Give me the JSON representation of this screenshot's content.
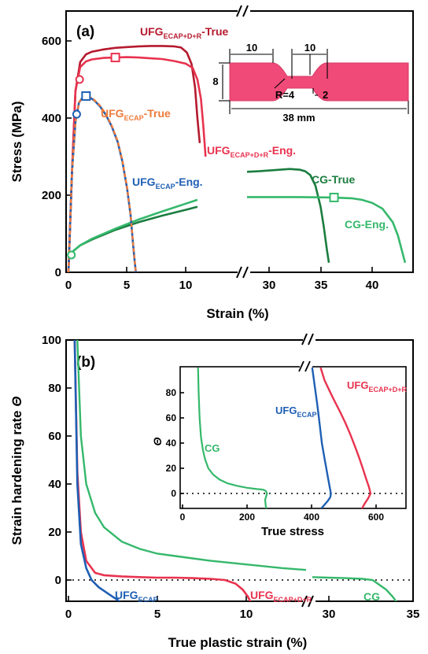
{
  "chart_data": [
    {
      "type": "line",
      "panel": "(a)",
      "xlabel": "Strain (%)",
      "ylabel": "Stress (MPa)",
      "ylim": [
        0,
        650
      ],
      "x_segments": [
        {
          "range": [
            0,
            11
          ],
          "ticks": [
            "0",
            "5",
            "10"
          ]
        },
        {
          "range": [
            27.4,
            43.5
          ],
          "ticks": [
            "30",
            "35",
            "40"
          ]
        }
      ],
      "yticks": [
        "0",
        "200",
        "400",
        "600"
      ],
      "series": [
        {
          "label_main": "UFG",
          "label_sub": "ECAP+D+R",
          "label_tail": "-True",
          "color": "#b51a2e",
          "x": [
            0,
            0.3,
            0.6,
            1.0,
            1.5,
            2,
            3,
            4,
            5,
            6,
            7,
            8,
            9,
            9.6,
            10.1,
            10.5,
            10.8,
            11.0,
            11.2
          ],
          "y": [
            0,
            260,
            470,
            545,
            565,
            572,
            578,
            582,
            584,
            586,
            587,
            587,
            586,
            583,
            570,
            540,
            480,
            400,
            335
          ]
        },
        {
          "label_main": "UFG",
          "label_sub": "ECAP+D+R",
          "label_tail": "-Eng.",
          "color": "#e8334f",
          "x": [
            0,
            0.3,
            0.6,
            1.0,
            1.5,
            2,
            3,
            4,
            5,
            6,
            7,
            8,
            9,
            10,
            10.6,
            11.0,
            11.3,
            11.5,
            11.7
          ],
          "y": [
            0,
            260,
            470,
            532,
            547,
            552,
            556,
            557,
            558,
            557,
            555,
            553,
            548,
            541,
            530,
            500,
            450,
            380,
            300
          ]
        },
        {
          "label_main": "UFG",
          "label_sub": "ECAP",
          "label_tail": "-True",
          "color": "#ee7a3a",
          "dashed": true,
          "x": [
            0,
            0.3,
            0.6,
            0.9,
            1.2,
            1.5,
            1.8,
            2.2,
            2.7,
            3.2,
            3.7,
            4.2,
            4.6,
            5.0,
            5.3,
            5.5,
            5.65,
            5.75
          ],
          "y": [
            0,
            260,
            390,
            440,
            455,
            458,
            455,
            447,
            432,
            410,
            380,
            340,
            290,
            220,
            150,
            80,
            30,
            0
          ]
        },
        {
          "label_main": "UFG",
          "label_sub": "ECAP",
          "label_tail": "-Eng.",
          "color": "#1e5fb4",
          "x": [
            0,
            0.3,
            0.6,
            0.9,
            1.2,
            1.5,
            1.8,
            2.2,
            2.7,
            3.2,
            3.7,
            4.2,
            4.6,
            5.0,
            5.3,
            5.5,
            5.65,
            5.75
          ],
          "y": [
            0,
            260,
            390,
            440,
            453,
            457,
            454,
            446,
            430,
            408,
            378,
            338,
            288,
            218,
            148,
            78,
            28,
            0
          ]
        },
        {
          "label_main": "CG",
          "label_sub": "",
          "label_tail": "-True",
          "color": "#1b7d3f",
          "x": [
            0,
            0.4,
            1,
            2,
            4,
            6,
            8,
            10,
            11,
            27.4,
            29,
            31,
            32,
            33,
            33.5,
            34,
            34.5,
            35,
            35.3,
            35.6,
            35.8
          ],
          "y": [
            45,
            55,
            70,
            85,
            110,
            130,
            147,
            162,
            170,
            260,
            262,
            266,
            268,
            266,
            262,
            252,
            225,
            170,
            120,
            60,
            25
          ]
        },
        {
          "label_main": "CG",
          "label_sub": "",
          "label_tail": "-Eng.",
          "color": "#35b86b",
          "x": [
            0,
            0.4,
            1,
            2,
            4,
            6,
            8,
            10,
            11,
            27.4,
            30,
            33,
            36,
            38,
            39,
            40,
            41,
            42,
            42.5,
            43,
            43.2
          ],
          "y": [
            45,
            55,
            70,
            87,
            113,
            137,
            158,
            178,
            188,
            195,
            195,
            195,
            194,
            192,
            188,
            180,
            165,
            130,
            95,
            45,
            25
          ]
        }
      ],
      "markers": [
        {
          "shape": "circle",
          "x": 0.25,
          "y": 45,
          "color": "#35b86b"
        },
        {
          "shape": "circle",
          "x": 0.7,
          "y": 410,
          "color": "#1e5fb4"
        },
        {
          "shape": "circle",
          "x": 0.95,
          "y": 500,
          "color": "#e8334f"
        },
        {
          "shape": "square",
          "x": 1.5,
          "y": 457,
          "color": "#1e5fb4"
        },
        {
          "shape": "square",
          "x": 4.0,
          "y": 557,
          "color": "#e8334f"
        },
        {
          "shape": "square",
          "x": 36.3,
          "y": 194,
          "color": "#35b86b"
        }
      ],
      "inset": {
        "dims": [
          "10",
          "10",
          "8",
          "R=4",
          "2",
          "38 mm"
        ],
        "color": "#f04a78"
      }
    },
    {
      "type": "line",
      "panel": "(b)",
      "xlabel": "True plastic strain (%)",
      "ylabel_text": "Strain hardening rate ",
      "ylabel_symbol": "Θ",
      "ylim": [
        -10,
        100
      ],
      "x_segments": [
        {
          "range": [
            0,
            14
          ],
          "ticks": [
            "0",
            "5",
            "10"
          ]
        },
        {
          "range": [
            27.7,
            35
          ],
          "ticks": [
            "30",
            "35"
          ]
        }
      ],
      "yticks": [
        "0",
        "20",
        "40",
        "60",
        "80",
        "100"
      ],
      "series": [
        {
          "label_main": "UFG",
          "label_sub": "ECAP",
          "color": "#1e5fb4",
          "x": [
            0.35,
            0.5,
            0.7,
            1.0,
            1.3,
            1.7,
            2.1,
            2.5,
            2.8,
            3.0
          ],
          "y": [
            100,
            40,
            15,
            5,
            0,
            -3,
            -5,
            -7,
            -8.5,
            -10
          ]
        },
        {
          "label_main": "UFG",
          "label_sub": "ECAP+D+R",
          "color": "#e8334f",
          "x": [
            0.35,
            0.5,
            0.7,
            1.0,
            1.5,
            2,
            3,
            4,
            5,
            6,
            7,
            8,
            8.8,
            9.4,
            9.8,
            10.1,
            10.3
          ],
          "y": [
            100,
            45,
            20,
            8,
            3,
            2,
            1.5,
            1.2,
            1,
            1,
            0.8,
            0.5,
            0,
            -1.5,
            -4,
            -7,
            -10
          ]
        },
        {
          "label_main": "CG",
          "label_sub": "",
          "color": "#35b86b",
          "x": [
            0.5,
            0.7,
            1.0,
            1.5,
            2,
            3,
            4,
            5,
            6,
            8,
            10,
            12,
            13.7,
            27.7,
            29,
            30,
            31,
            32,
            32.6,
            33,
            33.4,
            33.8,
            34.0
          ],
          "y": [
            100,
            60,
            40,
            28,
            22,
            16,
            13,
            11,
            10,
            8,
            6.5,
            5,
            4,
            1.5,
            1.2,
            1,
            0.8,
            0.5,
            0,
            -2,
            -4,
            -7,
            -9
          ]
        }
      ],
      "inset": {
        "xlabel": "True stress",
        "ylabel": "Θ",
        "xlim": [
          0,
          700
        ],
        "ylim": [
          -12,
          100
        ],
        "xticks": [
          "0",
          "200",
          "400",
          "600"
        ],
        "yticks": [
          "0",
          "20",
          "40",
          "60",
          "80"
        ],
        "series": [
          {
            "label_main": "CG",
            "label_sub": "",
            "color": "#35b86b",
            "x": [
              48,
              50,
              53,
              57,
              63,
              70,
              80,
              95,
              115,
              140,
              170,
              200,
              230,
              250,
              258,
              262,
              256,
              258,
              260
            ],
            "y": [
              100,
              80,
              60,
              45,
              35,
              27,
              20,
              15,
              11,
              8,
              6,
              4.5,
              3.5,
              3,
              2,
              0,
              -5,
              -10,
              -12
            ]
          },
          {
            "label_main": "UFG",
            "label_sub": "ECAP",
            "color": "#1e5fb4",
            "x": [
              402,
              410,
              418,
              425,
              432,
              440,
              447,
              452,
              457,
              460,
              458,
              450,
              440,
              430
            ],
            "y": [
              100,
              85,
              70,
              55,
              40,
              28,
              18,
              11,
              4,
              0,
              -3,
              -6,
              -9,
              -12
            ]
          },
          {
            "label_main": "UFG",
            "label_sub": "ECAP+D+R",
            "color": "#e8334f",
            "x": [
              428,
              440,
              455,
              470,
              488,
              505,
              520,
              535,
              548,
              560,
              570,
              578,
              583,
              575,
              565,
              556
            ],
            "y": [
              100,
              90,
              82,
              74,
              65,
              56,
              47,
              37,
              28,
              19,
              11,
              5,
              0,
              -4,
              -8,
              -12
            ]
          }
        ]
      }
    }
  ]
}
